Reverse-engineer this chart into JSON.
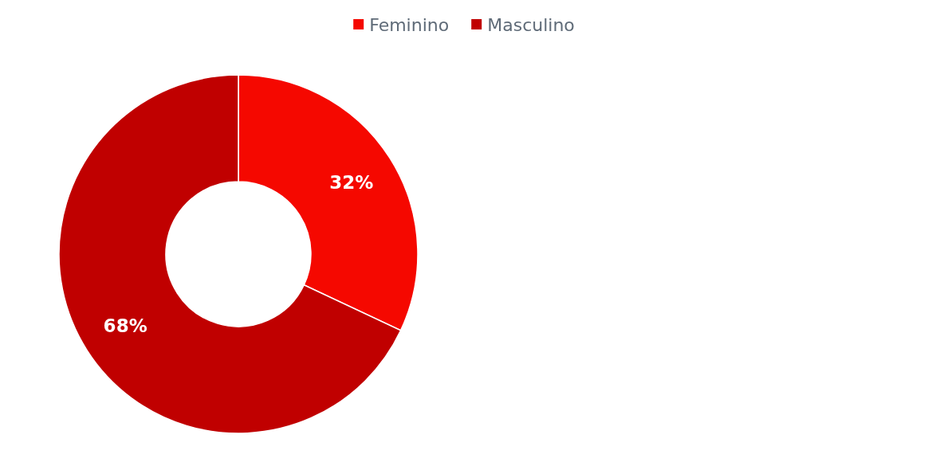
{
  "chart_data": {
    "type": "donut",
    "categories": [
      "Feminino",
      "Masculino"
    ],
    "values": [
      32,
      68
    ],
    "colors": [
      "#f50800",
      "#c00000"
    ],
    "value_labels": [
      "32%",
      "68%"
    ],
    "legend": "top"
  }
}
